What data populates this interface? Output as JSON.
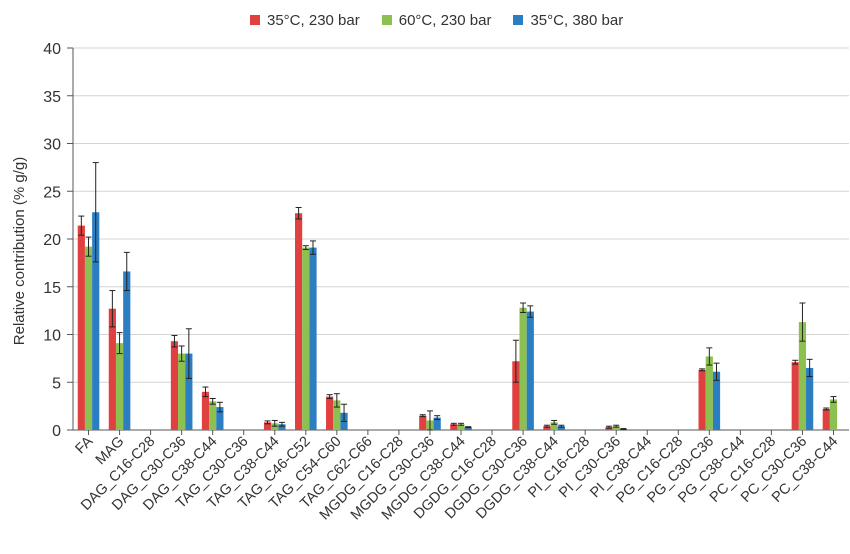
{
  "chart_data": {
    "type": "bar",
    "title": "",
    "xlabel": "",
    "ylabel": "Relative contribution (% g/g)",
    "ylim": [
      0,
      40
    ],
    "yticks": [
      0,
      5,
      10,
      15,
      20,
      25,
      30,
      35,
      40
    ],
    "grid": true,
    "legend_position": "top",
    "categories": [
      "FA",
      "MAG",
      "DAG_C16-C28",
      "DAG_C30-C36",
      "DAG_C38-C44",
      "TAG_C30-C36",
      "TAG_C38-C44",
      "TAG_C46-C52",
      "TAG_C54-C60",
      "TAG_C62-C66",
      "MGDG_C16-C28",
      "MGDG_C30-C36",
      "MGDG_C38-C44",
      "DGDG_C16-C28",
      "DGDG_C30-C36",
      "DGDG_C38-C44",
      "PI_C16-C28",
      "PI_C30-C36",
      "PI_C38-C44",
      "PG_C16-C28",
      "PG_C30-C36",
      "PG_C38-C44",
      "PC_C16-C28",
      "PC_C30-C36",
      "PC_C38-C44"
    ],
    "series": [
      {
        "name": "35°C, 230 bar",
        "color": "#e0403f",
        "values": [
          21.4,
          12.7,
          0,
          9.3,
          4.0,
          0,
          0.8,
          22.7,
          3.5,
          0,
          0,
          1.5,
          0.6,
          0,
          7.2,
          0.4,
          0,
          0.3,
          0,
          0,
          6.3,
          0,
          0,
          7.1,
          2.2
        ],
        "errors": [
          1.0,
          1.9,
          0,
          0.6,
          0.5,
          0,
          0.15,
          0.6,
          0.2,
          0,
          0,
          0.1,
          0.1,
          0,
          2.2,
          0.1,
          0,
          0.1,
          0,
          0,
          0.1,
          0,
          0,
          0.2,
          0.1
        ]
      },
      {
        "name": "60°C, 230 bar",
        "color": "#8cc152",
        "values": [
          19.2,
          9.1,
          0,
          8.0,
          3.0,
          0,
          0.7,
          19.1,
          3.1,
          0,
          0,
          1.0,
          0.6,
          0,
          12.8,
          0.8,
          0,
          0.4,
          0,
          0,
          7.7,
          0,
          0,
          11.3,
          3.2
        ],
        "errors": [
          1.0,
          1.1,
          0,
          0.8,
          0.3,
          0,
          0.3,
          0.2,
          0.7,
          0,
          0,
          1.0,
          0.1,
          0,
          0.5,
          0.2,
          0,
          0.1,
          0,
          0,
          0.9,
          0,
          0,
          2.0,
          0.3
        ]
      },
      {
        "name": "35°C, 380 bar",
        "color": "#2b7ec1",
        "values": [
          22.8,
          16.6,
          0,
          8.0,
          2.4,
          0,
          0.6,
          19.1,
          1.8,
          0,
          0,
          1.3,
          0.3,
          0,
          12.4,
          0.4,
          0,
          0.1,
          0,
          0,
          6.1,
          0,
          0,
          6.5,
          0
        ],
        "errors": [
          5.2,
          2.0,
          0,
          2.6,
          0.5,
          0,
          0.2,
          0.7,
          0.9,
          0,
          0,
          0.2,
          0.05,
          0,
          0.6,
          0.1,
          0,
          0.05,
          0,
          0,
          0.9,
          0,
          0,
          0.9,
          0
        ]
      }
    ]
  }
}
